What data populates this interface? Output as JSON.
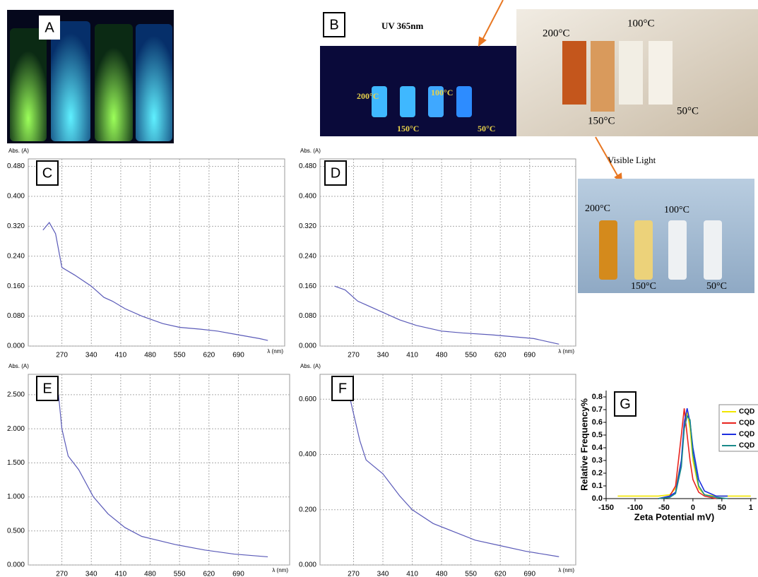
{
  "photos": {
    "a": {
      "panel_label": "A"
    },
    "b": {
      "panel_label": "B",
      "caption": "UV 365nm",
      "vials": [
        "200°C",
        "100°C",
        "150°C",
        "50°C"
      ]
    },
    "daylight": {
      "vials": [
        "200°C",
        "100°C",
        "150°C",
        "50°C"
      ]
    },
    "visible": {
      "caption": "Visible Light",
      "vials": [
        "200°C",
        "100°C",
        "150°C",
        "50°C"
      ]
    }
  },
  "chart_data": [
    {
      "type": "line",
      "panel_label": "C",
      "ylabel": "Abs. (A)",
      "xlabel": "λ (nm)",
      "grid": true,
      "x": [
        225,
        240,
        255,
        270,
        300,
        340,
        370,
        390,
        420,
        460,
        510,
        550,
        600,
        640,
        690,
        740,
        760
      ],
      "series": [
        {
          "color": "#5a5ab8",
          "values": [
            0.31,
            0.33,
            0.3,
            0.21,
            0.19,
            0.16,
            0.13,
            0.12,
            0.1,
            0.08,
            0.06,
            0.05,
            0.045,
            0.04,
            0.03,
            0.02,
            0.015
          ]
        }
      ],
      "xlim": [
        190,
        800
      ],
      "ylim": [
        0,
        0.5
      ],
      "xticks": [
        270,
        340,
        410,
        480,
        550,
        620,
        690
      ],
      "yticks": [
        {
          "value": 0,
          "label": "0.000"
        },
        {
          "value": 0.08,
          "label": "0.080"
        },
        {
          "value": 0.16,
          "label": "0.160"
        },
        {
          "value": 0.24,
          "label": "0.240"
        },
        {
          "value": 0.32,
          "label": "0.320"
        },
        {
          "value": 0.4,
          "label": "0.400"
        },
        {
          "value": 0.48,
          "label": "0.480"
        }
      ]
    },
    {
      "type": "line",
      "panel_label": "D",
      "ylabel": "Abs. (A)",
      "xlabel": "λ (nm)",
      "grid": true,
      "x": [
        225,
        250,
        280,
        300,
        340,
        380,
        420,
        480,
        530,
        600,
        650,
        700,
        740,
        760
      ],
      "series": [
        {
          "color": "#5a5ab8",
          "values": [
            0.16,
            0.15,
            0.12,
            0.11,
            0.09,
            0.07,
            0.055,
            0.04,
            0.035,
            0.03,
            0.025,
            0.02,
            0.01,
            0.005
          ]
        }
      ],
      "xlim": [
        190,
        800
      ],
      "ylim": [
        0,
        0.5
      ],
      "xticks": [
        270,
        340,
        410,
        480,
        550,
        620,
        690
      ],
      "yticks": [
        {
          "value": 0,
          "label": "0.000"
        },
        {
          "value": 0.08,
          "label": "0.080"
        },
        {
          "value": 0.16,
          "label": "0.160"
        },
        {
          "value": 0.24,
          "label": "0.240"
        },
        {
          "value": 0.32,
          "label": "0.320"
        },
        {
          "value": 0.4,
          "label": "0.400"
        },
        {
          "value": 0.48,
          "label": "0.480"
        }
      ]
    },
    {
      "type": "line",
      "panel_label": "E",
      "ylabel": "Abs. (A)",
      "xlabel": "λ (nm)",
      "grid": true,
      "x": [
        262,
        270,
        285,
        310,
        345,
        380,
        420,
        460,
        540,
        610,
        680,
        760
      ],
      "series": [
        {
          "color": "#5a5ab8",
          "values": [
            2.5,
            2.0,
            1.6,
            1.4,
            1.0,
            0.75,
            0.55,
            0.42,
            0.3,
            0.22,
            0.16,
            0.12
          ]
        }
      ],
      "xlim": [
        190,
        812
      ],
      "ylim": [
        0,
        2.8
      ],
      "xticks": [
        270,
        340,
        410,
        480,
        550,
        620,
        690
      ],
      "yticks": [
        {
          "value": 0,
          "label": "0.000"
        },
        {
          "value": 0.5,
          "label": "0.500"
        },
        {
          "value": 1,
          "label": "1.000"
        },
        {
          "value": 1.5,
          "label": "1.500"
        },
        {
          "value": 2,
          "label": "2.000"
        },
        {
          "value": 2.5,
          "label": "2.500"
        }
      ]
    },
    {
      "type": "line",
      "panel_label": "F",
      "ylabel": "Abs. (A)",
      "xlabel": "λ (nm)",
      "grid": true,
      "x": [
        262,
        285,
        300,
        340,
        380,
        410,
        460,
        510,
        560,
        620,
        680,
        760
      ],
      "series": [
        {
          "color": "#5a5ab8",
          "values": [
            0.6,
            0.45,
            0.38,
            0.33,
            0.25,
            0.2,
            0.15,
            0.12,
            0.09,
            0.07,
            0.05,
            0.03
          ]
        }
      ],
      "xlim": [
        190,
        800
      ],
      "ylim": [
        0,
        0.69
      ],
      "xticks": [
        270,
        340,
        410,
        480,
        550,
        620,
        690
      ],
      "yticks": [
        {
          "value": 0,
          "label": "0.000"
        },
        {
          "value": 0.2,
          "label": "0.200"
        },
        {
          "value": 0.4,
          "label": "0.400"
        },
        {
          "value": 0.6,
          "label": "0.600"
        }
      ]
    },
    {
      "type": "line",
      "panel_label": "G",
      "ylabel": "Relative Frequency%",
      "xlabel": "Zeta Potential mV)",
      "grid": false,
      "x": [
        -130,
        -100,
        -60,
        -40,
        -30,
        -20,
        -15,
        -10,
        -5,
        0,
        10,
        20,
        40,
        60,
        80,
        100
      ],
      "series": [
        {
          "name": "CQD",
          "color": "#f2e600",
          "values": [
            0.02,
            0.02,
            0.02,
            0.03,
            0.08,
            0.3,
            0.55,
            0.68,
            0.55,
            0.3,
            0.08,
            0.03,
            0.02,
            0.02,
            0.02,
            0.02
          ]
        },
        {
          "name": "CQD",
          "color": "#e8231e",
          "values": [
            null,
            null,
            0,
            0.02,
            0.1,
            0.5,
            0.71,
            0.5,
            0.3,
            0.15,
            0.05,
            0.02,
            0,
            null,
            null,
            null
          ]
        },
        {
          "name": "CQD",
          "color": "#1c2ee0",
          "values": [
            null,
            null,
            0,
            0.02,
            0.05,
            0.3,
            0.6,
            0.71,
            0.6,
            0.4,
            0.15,
            0.06,
            0.02,
            0.02,
            null,
            null
          ]
        },
        {
          "name": "CQD",
          "color": "#1a8a8a",
          "values": [
            null,
            null,
            0,
            0.01,
            0.04,
            0.25,
            0.55,
            0.65,
            0.62,
            0.35,
            0.1,
            0.03,
            0.01,
            0,
            null,
            null
          ]
        }
      ],
      "xlim": [
        -150,
        110
      ],
      "ylim": [
        0,
        0.85
      ],
      "xticks": [
        -150,
        -100,
        -50,
        0,
        50,
        {
          "value": 100,
          "label": "1"
        }
      ],
      "yticks": [
        {
          "value": 0,
          "label": "0.0"
        },
        {
          "value": 0.1,
          "label": "0.1"
        },
        {
          "value": 0.2,
          "label": "0.2"
        },
        {
          "value": 0.3,
          "label": "0.3"
        },
        {
          "value": 0.4,
          "label": "0.4"
        },
        {
          "value": 0.5,
          "label": "0.5"
        },
        {
          "value": 0.6,
          "label": "0.6"
        },
        {
          "value": 0.7,
          "label": "0.7"
        },
        {
          "value": 0.8,
          "label": "0.8"
        }
      ]
    }
  ]
}
